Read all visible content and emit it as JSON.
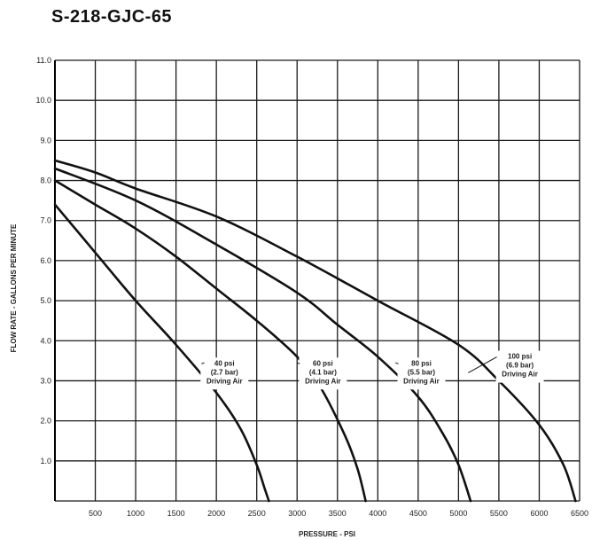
{
  "chart_data": {
    "type": "line",
    "title": "S-218-GJC-65",
    "xlabel": "PRESSURE - PSI",
    "ylabel": "FLOW RATE - GALLONS PER MINUTE",
    "xlim": [
      0,
      6500
    ],
    "ylim": [
      0,
      11
    ],
    "x_ticks": [
      500,
      1000,
      1500,
      2000,
      2500,
      3000,
      3500,
      4000,
      4500,
      5000,
      5500,
      6000,
      6500
    ],
    "x_tick_labels": [
      "500",
      "1000",
      "1500",
      "2000",
      "2500",
      "3000",
      "3500",
      "4000",
      "4500",
      "5000",
      "5500",
      "6000",
      "6500"
    ],
    "y_ticks": [
      1,
      2,
      3,
      4,
      5,
      6,
      7,
      8,
      9,
      10,
      11
    ],
    "y_tick_labels": [
      "1.0",
      "2.0",
      "3.0",
      "4.0",
      "5.0",
      "6.0",
      "7.0",
      "8.0",
      "9.0",
      "10.0",
      "11.0"
    ],
    "grid": true,
    "series": [
      {
        "x": [
          0,
          500,
          1000,
          1500,
          2000,
          2300,
          2500,
          2600,
          2650
        ],
        "y": [
          7.4,
          6.2,
          5.0,
          3.9,
          2.7,
          1.8,
          0.9,
          0.3,
          0.0
        ]
      },
      {
        "x": [
          0,
          500,
          1000,
          1500,
          2000,
          2500,
          3000,
          3300,
          3600,
          3750,
          3850
        ],
        "y": [
          8.0,
          7.4,
          6.8,
          6.1,
          5.3,
          4.5,
          3.6,
          2.8,
          1.6,
          0.8,
          0.0
        ]
      },
      {
        "x": [
          0,
          1000,
          2000,
          3000,
          3500,
          4000,
          4500,
          4800,
          5000,
          5150
        ],
        "y": [
          8.3,
          7.5,
          6.4,
          5.2,
          4.4,
          3.6,
          2.6,
          1.7,
          0.9,
          0.0
        ]
      },
      {
        "x": [
          0,
          500,
          1000,
          2000,
          3000,
          4000,
          5000,
          5500,
          6000,
          6300,
          6450
        ],
        "y": [
          8.5,
          8.2,
          7.8,
          7.1,
          6.1,
          5.0,
          3.9,
          3.0,
          1.9,
          0.9,
          0.0
        ]
      }
    ],
    "annotations": [
      {
        "lines": [
          "40 psi",
          "(2.7 bar)",
          "Driving Air"
        ]
      },
      {
        "lines": [
          "60 psi",
          "(4.1 bar)",
          "Driving Air"
        ]
      },
      {
        "lines": [
          "80 psi",
          "(5.5 bar)",
          "Driving Air"
        ]
      },
      {
        "lines": [
          "100 psi",
          "(6.9 bar)",
          "Driving Air"
        ]
      }
    ],
    "colors": {
      "line": "#111111",
      "grid": "#1a1a1a",
      "background": "#ffffff"
    }
  }
}
